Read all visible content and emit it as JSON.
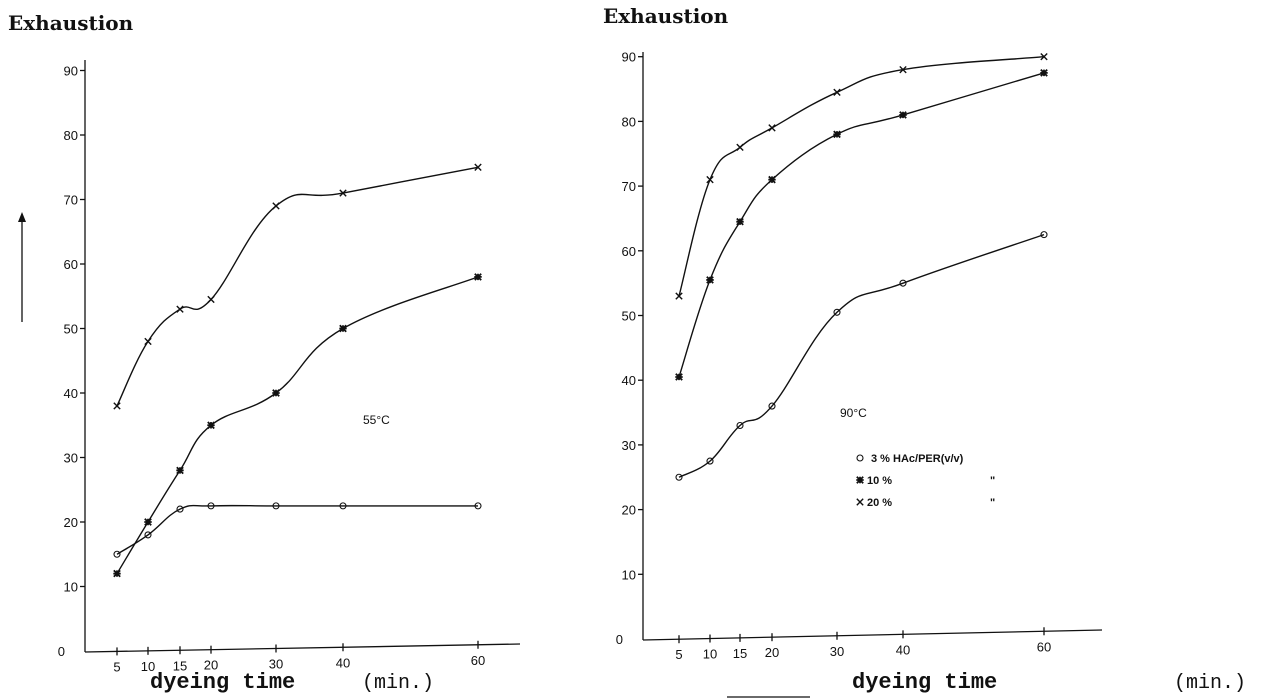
{
  "chart_data": [
    {
      "type": "scatter",
      "title": "",
      "ylabel": "Exhaustion",
      "xlabel": "dyeing time",
      "x_unit": "(min.)",
      "annotation": "55°C",
      "x_ticks": [
        5,
        10,
        15,
        20,
        30,
        40,
        60
      ],
      "y_ticks": [
        10,
        20,
        30,
        40,
        50,
        60,
        70,
        80,
        90
      ],
      "ylim": [
        0,
        95
      ],
      "grid": false,
      "series": [
        {
          "marker": "o",
          "x": [
            5,
            10,
            15,
            20,
            30,
            40,
            60
          ],
          "y": [
            15,
            18,
            22,
            22.5,
            22.5,
            22.5,
            22.5
          ]
        },
        {
          "marker": "*",
          "x": [
            5,
            10,
            15,
            20,
            30,
            40,
            60
          ],
          "y": [
            12,
            20,
            28,
            35,
            40,
            50,
            58
          ]
        },
        {
          "marker": "x",
          "x": [
            5,
            10,
            15,
            20,
            30,
            40,
            60
          ],
          "y": [
            38,
            48,
            53,
            54.5,
            69,
            71,
            75
          ]
        }
      ]
    },
    {
      "type": "scatter",
      "title": "",
      "ylabel": "Exhaustion",
      "xlabel": "dyeing time",
      "x_unit": "(min.)",
      "annotation": "90°C",
      "x_ticks": [
        5,
        10,
        15,
        20,
        30,
        40,
        60
      ],
      "y_ticks": [
        10,
        20,
        30,
        40,
        50,
        60,
        70,
        80,
        90
      ],
      "ylim": [
        0,
        95
      ],
      "grid": false,
      "legend": [
        "3 % HAc/PER(v/v)",
        "10 %",
        "20 %"
      ],
      "legend_ditto": "\"",
      "series": [
        {
          "name": "3 % HAc/PER(v/v)",
          "marker": "o",
          "x": [
            5,
            10,
            15,
            20,
            30,
            40,
            60
          ],
          "y": [
            25,
            27.5,
            33,
            36,
            50.5,
            55,
            62.5
          ]
        },
        {
          "name": "10 %",
          "marker": "*",
          "x": [
            5,
            10,
            15,
            20,
            30,
            40,
            60
          ],
          "y": [
            40.5,
            55.5,
            64.5,
            71,
            78,
            81,
            87.5
          ]
        },
        {
          "name": "20 %",
          "marker": "x",
          "x": [
            5,
            10,
            15,
            20,
            30,
            40,
            60
          ],
          "y": [
            53,
            71,
            76,
            79,
            84.5,
            88,
            90
          ]
        }
      ]
    }
  ]
}
